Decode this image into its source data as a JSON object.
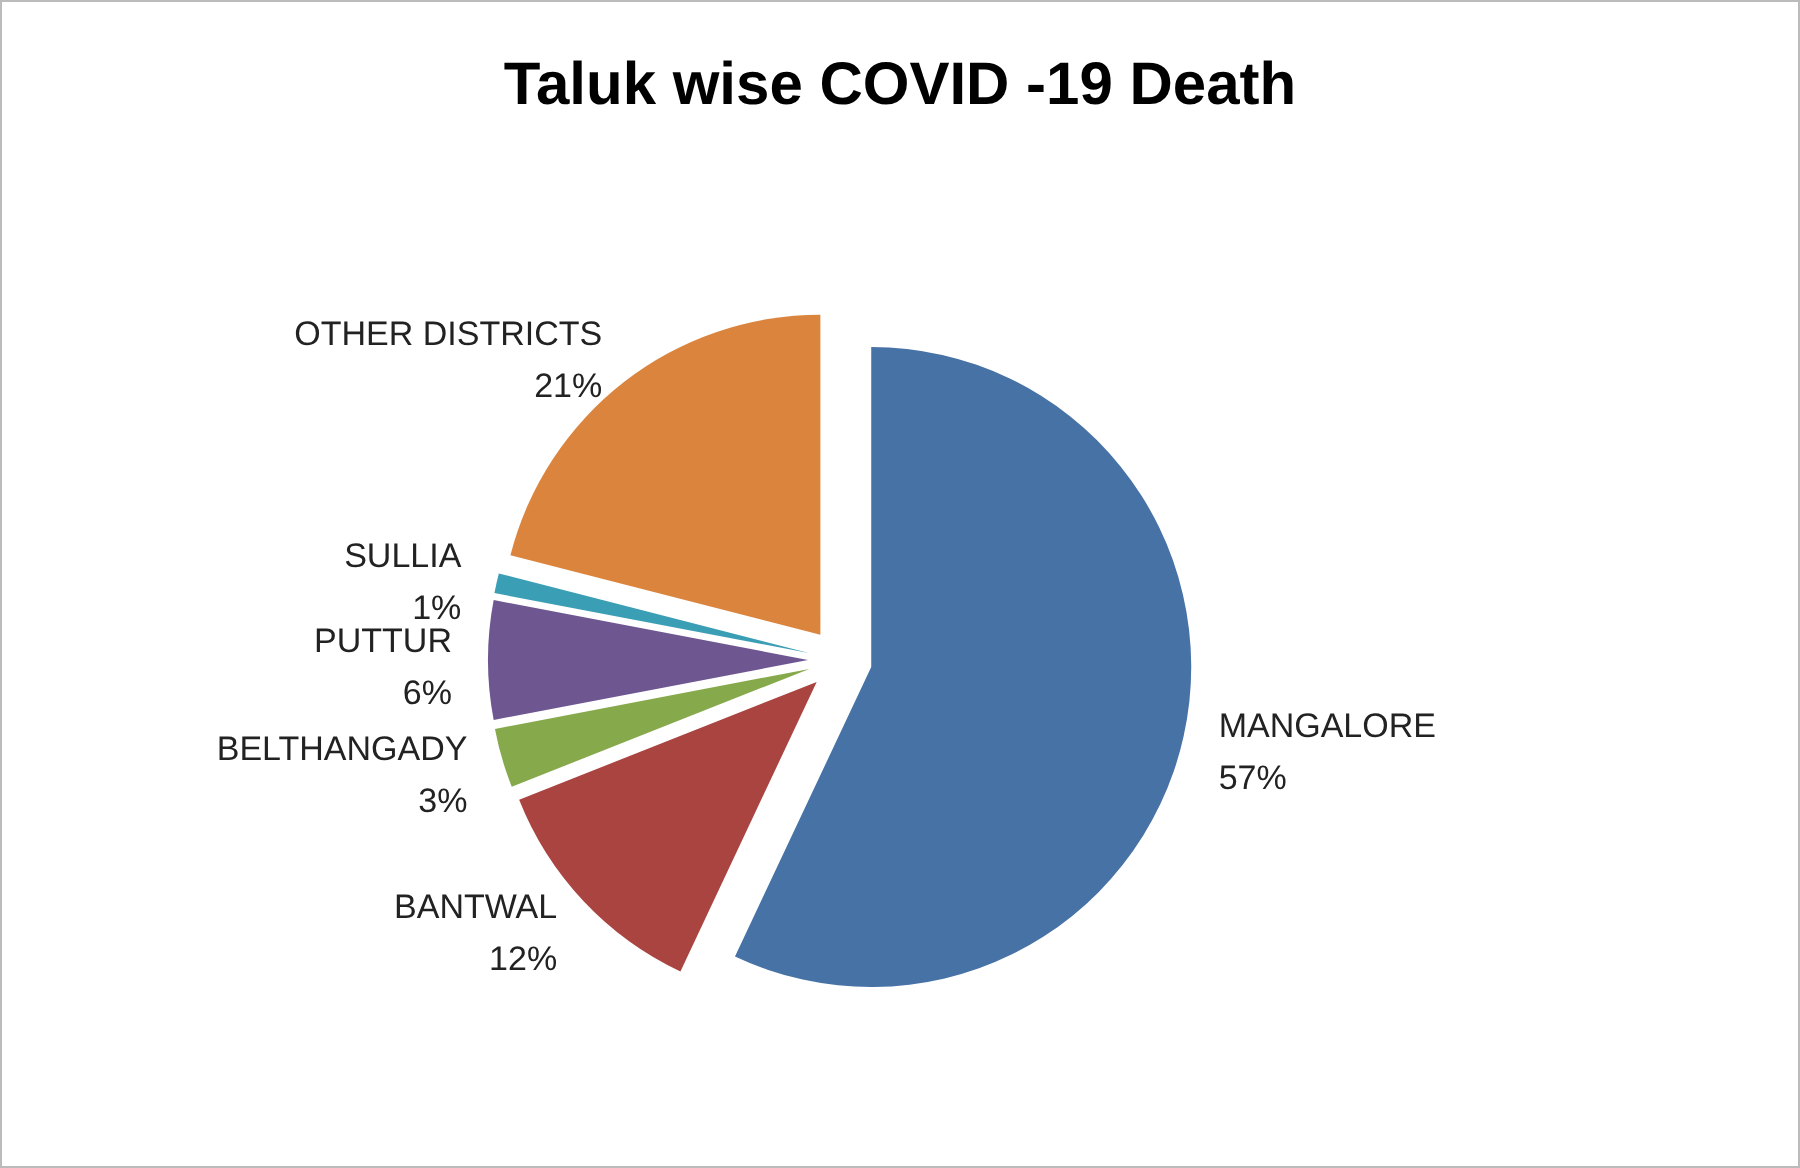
{
  "chart_data": {
    "type": "pie",
    "title": "Taluk wise COVID -19 Death",
    "categories": [
      "MANGALORE",
      "BANTWAL",
      "BELTHANGADY",
      "PUTTUR",
      "SULLIA",
      "OTHER DISTRICTS"
    ],
    "values": [
      57,
      12,
      3,
      6,
      1,
      21
    ],
    "colors": [
      "#4672a6",
      "#a94441",
      "#86a94c",
      "#6e5690",
      "#3a9eb5",
      "#db843d"
    ],
    "value_labels": [
      "57%",
      "12%",
      "3%",
      "6%",
      "1%",
      "21%"
    ],
    "legend": false
  }
}
